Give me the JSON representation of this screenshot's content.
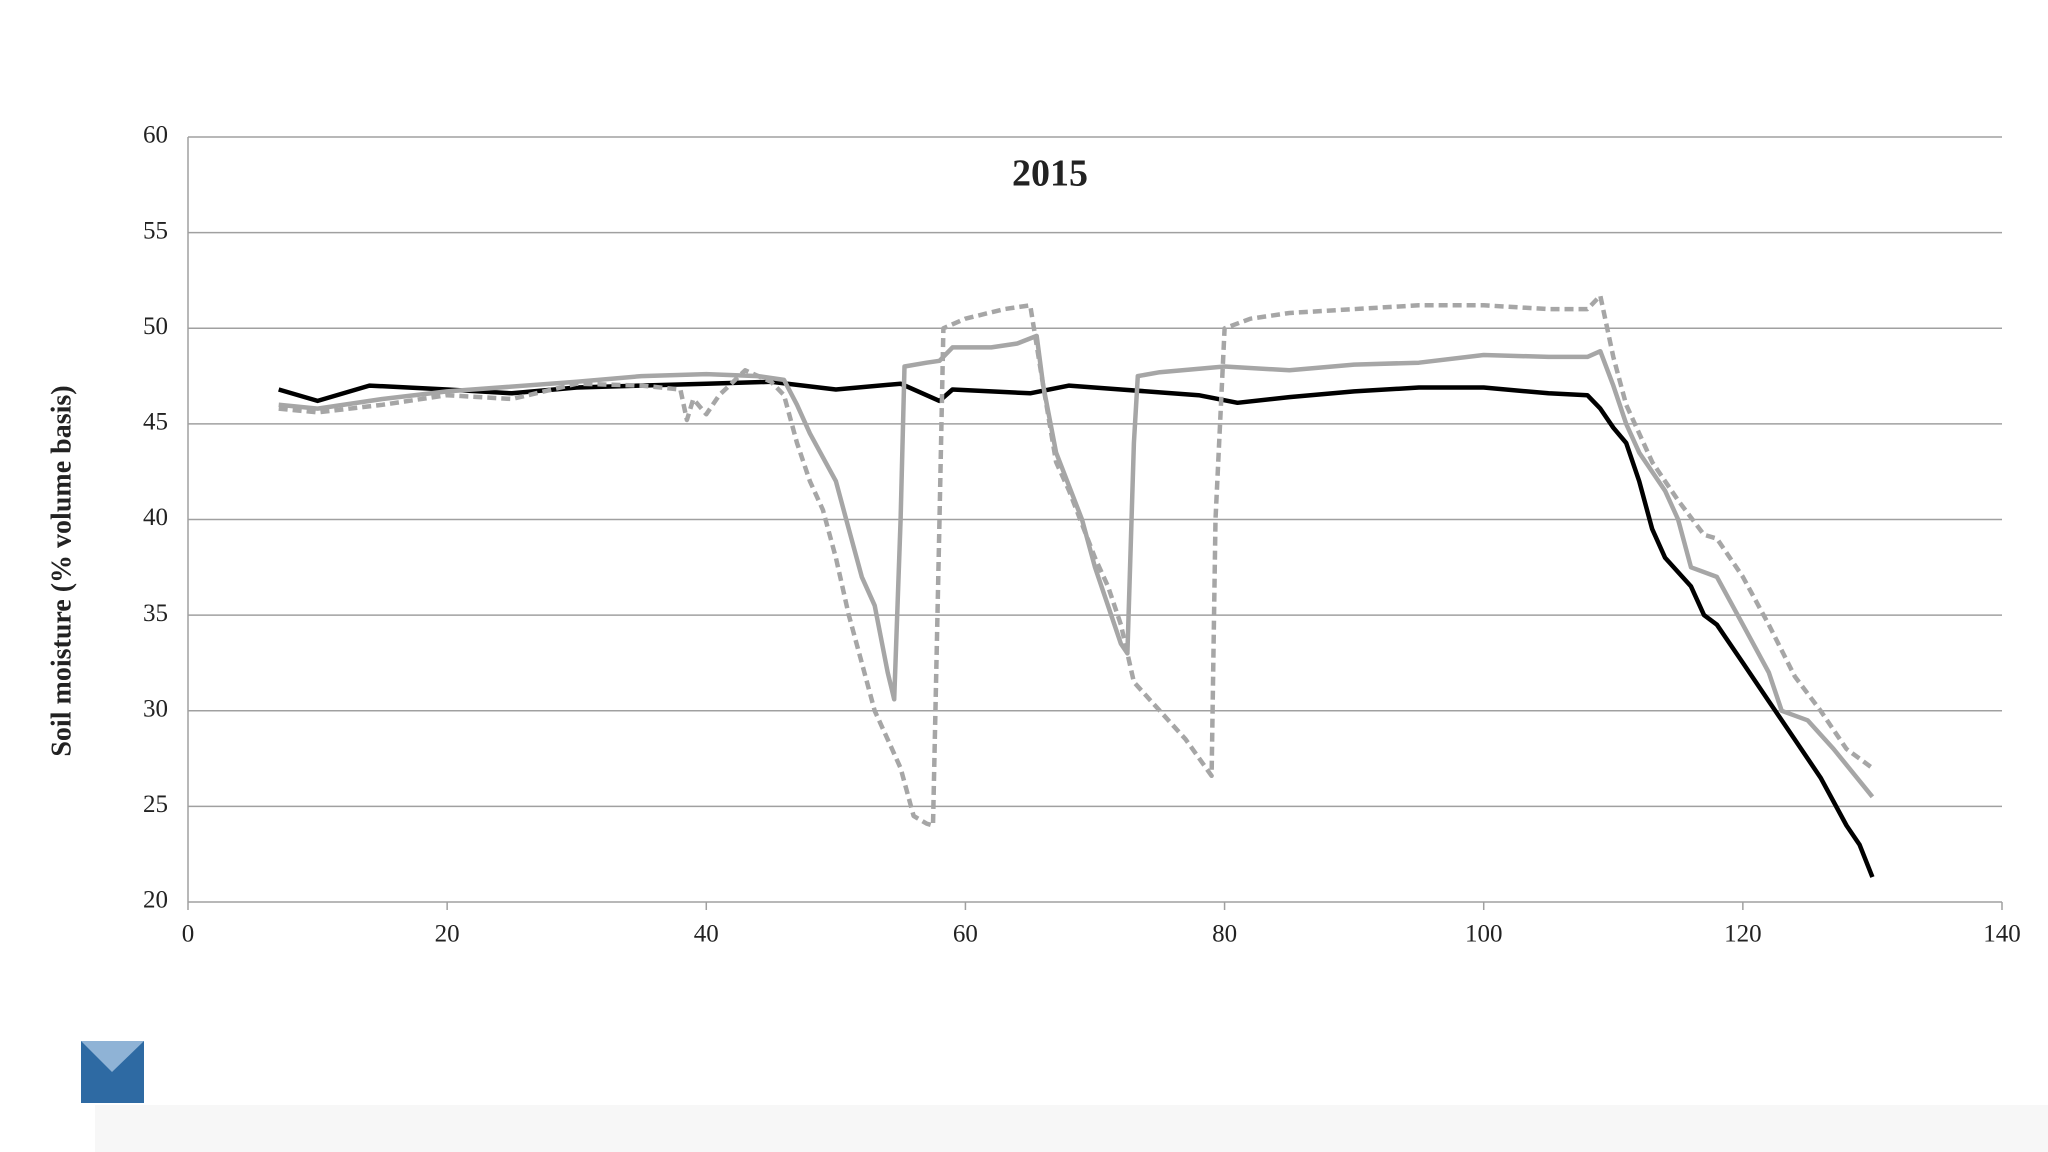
{
  "chart_data": {
    "type": "line",
    "title": "2015",
    "y_label": "Soil moisture (% volume basis)",
    "xlim": [
      0,
      140
    ],
    "xticks": [
      0,
      20,
      40,
      60,
      80,
      100,
      120,
      140
    ],
    "ylim": [
      20,
      60
    ],
    "yticks": [
      20,
      25,
      30,
      35,
      40,
      45,
      50,
      55,
      60
    ],
    "grid": true,
    "series": [
      {
        "color": "#000000",
        "dashed": false,
        "x": [
          7,
          10,
          14,
          20,
          25,
          30,
          40,
          45,
          50,
          55,
          58,
          59,
          65,
          68,
          72,
          78,
          81,
          85,
          90,
          95,
          100,
          105,
          108,
          109,
          110,
          111,
          112,
          113,
          114,
          116,
          117,
          118,
          120,
          122,
          124,
          126,
          128,
          129,
          130
        ],
        "values": [
          46.8,
          46.2,
          47,
          46.8,
          46.6,
          46.9,
          47.1,
          47.2,
          46.8,
          47.1,
          46.2,
          46.8,
          46.6,
          47,
          46.8,
          46.5,
          46.1,
          46.4,
          46.7,
          46.9,
          46.9,
          46.6,
          46.5,
          45.8,
          44.8,
          44,
          42,
          39.5,
          38,
          36.5,
          35,
          34.5,
          32.5,
          30.5,
          28.5,
          26.5,
          24,
          23,
          21.3
        ]
      },
      {
        "color": "#a6a6a6",
        "dashed": false,
        "x": [
          7,
          10,
          15,
          20,
          30,
          35,
          40,
          44,
          46,
          47,
          48,
          50,
          51,
          52,
          53,
          54,
          54.5,
          55,
          55.3,
          57,
          58,
          59,
          62,
          64,
          65.5,
          66,
          67,
          69,
          70,
          71,
          72,
          72.5,
          73,
          73.3,
          75,
          80,
          85,
          90,
          95,
          100,
          105,
          108,
          109,
          110,
          111,
          112,
          114,
          115,
          116,
          118,
          120,
          122,
          123,
          125,
          127,
          130
        ],
        "values": [
          46,
          45.8,
          46.3,
          46.7,
          47.2,
          47.5,
          47.6,
          47.5,
          47.3,
          46,
          44.5,
          42,
          39.5,
          37,
          35.5,
          32,
          30.6,
          40,
          48,
          48.2,
          48.3,
          49,
          49,
          49.2,
          49.6,
          47,
          43.5,
          40,
          37.5,
          35.5,
          33.5,
          33,
          44,
          47.5,
          47.7,
          48,
          47.8,
          48.1,
          48.2,
          48.6,
          48.5,
          48.5,
          48.8,
          47,
          45,
          43.5,
          41.5,
          40,
          37.5,
          37,
          34.5,
          32,
          30,
          29.5,
          28,
          25.5
        ]
      },
      {
        "color": "#a6a6a6",
        "dashed": true,
        "x": [
          7,
          10,
          15,
          20,
          25,
          30,
          35,
          38,
          38.5,
          39,
          40,
          41,
          43,
          45,
          46,
          47,
          48,
          49,
          50,
          51,
          52,
          53,
          54,
          55,
          56,
          57,
          57.5,
          58,
          58.3,
          60,
          63,
          65,
          66,
          67,
          68,
          70,
          71,
          72,
          73,
          75,
          77,
          79,
          79.3,
          80,
          82,
          85,
          90,
          95,
          100,
          105,
          108,
          109,
          110,
          111,
          113,
          115,
          117,
          118,
          120,
          122,
          124,
          126,
          128,
          130
        ],
        "values": [
          45.8,
          45.6,
          46,
          46.5,
          46.3,
          47.1,
          47,
          46.8,
          45.2,
          46.3,
          45.5,
          46.5,
          47.8,
          47.2,
          46.5,
          44,
          42,
          40.5,
          38,
          35,
          32.5,
          30,
          28.5,
          27,
          24.5,
          24.1,
          24,
          40,
          50,
          50.5,
          51,
          51.2,
          47,
          43,
          41.5,
          38,
          36.5,
          34.5,
          31.5,
          30,
          28.5,
          26.6,
          40,
          50,
          50.5,
          50.8,
          51,
          51.2,
          51.2,
          51,
          51,
          51.7,
          48.5,
          46,
          43,
          41,
          39.2,
          39,
          37,
          34.5,
          31.8,
          30,
          28,
          27
        ]
      }
    ]
  }
}
